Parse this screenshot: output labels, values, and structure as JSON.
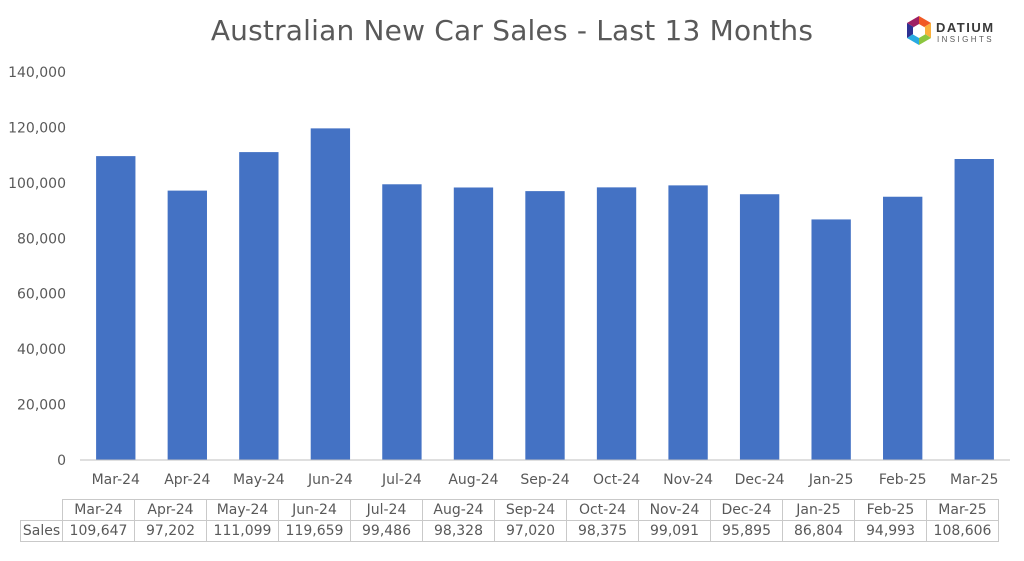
{
  "chart_data": {
    "type": "bar",
    "title": "Australian New Car Sales  - Last 13 Months",
    "categories": [
      "Mar-24",
      "Apr-24",
      "May-24",
      "Jun-24",
      "Jul-24",
      "Aug-24",
      "Sep-24",
      "Oct-24",
      "Nov-24",
      "Dec-24",
      "Jan-25",
      "Feb-25",
      "Mar-25"
    ],
    "series": [
      {
        "name": "Sales",
        "values": [
          109647,
          97202,
          111099,
          119659,
          99486,
          98328,
          97020,
          98375,
          99091,
          95895,
          86804,
          94993,
          108606
        ]
      }
    ],
    "value_labels": [
      "109,647",
      "97,202",
      "111,099",
      "119,659",
      "99,486",
      "98,328",
      "97,020",
      "98,375",
      "99,091",
      "95,895",
      "86,804",
      "94,993",
      "108,606"
    ],
    "ylim": [
      0,
      140000
    ],
    "yticks": [
      0,
      20000,
      40000,
      60000,
      80000,
      100000,
      120000,
      140000
    ],
    "ytick_labels": [
      "0",
      "20,000",
      "40,000",
      "60,000",
      "80,000",
      "100,000",
      "120,000",
      "140,000"
    ],
    "xlabel": "",
    "ylabel": "",
    "grid": false,
    "data_table": true,
    "bar_color": "#4472C4"
  },
  "logo": {
    "name": "DATIUM",
    "tagline": "INSIGHTS",
    "colors": [
      "#F15A24",
      "#FBB03B",
      "#8CC63F",
      "#29ABE2",
      "#2E3192",
      "#9E1F63"
    ]
  }
}
